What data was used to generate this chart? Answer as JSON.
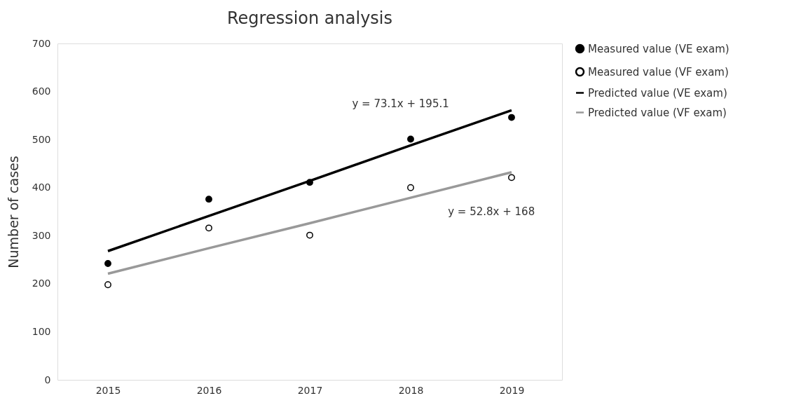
{
  "chart_data": {
    "type": "scatter",
    "title": "Regression analysis",
    "ylabel": "Number of cases",
    "categories": [
      "2015",
      "2016",
      "2017",
      "2018",
      "2019"
    ],
    "series": [
      {
        "name": "Measured value (VE exam)",
        "color": "#000000",
        "values": [
          242,
          376,
          411,
          501,
          546
        ]
      },
      {
        "name": "Measured value (VF exam)",
        "color": "#ffffff",
        "values": [
          198,
          316,
          301,
          400,
          421
        ]
      },
      {
        "name": "Predicted value (VE exam)",
        "type": "line",
        "color": "#000000",
        "values": [
          268,
          341,
          414,
          488,
          561
        ]
      },
      {
        "name": "Predicted value (VF exam)",
        "type": "line",
        "color": "#999999",
        "values": [
          221,
          274,
          326,
          379,
          432
        ]
      }
    ],
    "ylim": [
      0,
      700
    ],
    "yticks": [
      0,
      100,
      200,
      300,
      400,
      500,
      600,
      700
    ],
    "annotations": [
      "y = 73.1x + 195.1",
      "y = 52.8x + 168"
    ],
    "grid": false,
    "legend": "right",
    "line_style": "solid"
  }
}
